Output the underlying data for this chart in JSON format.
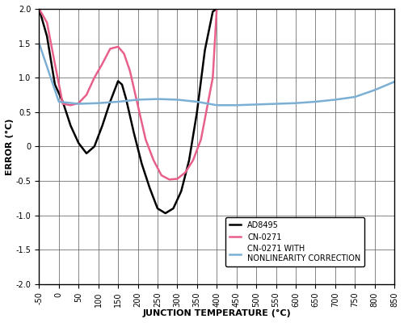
{
  "title": "",
  "xlabel": "JUNCTION TEMPERATURE (°C)",
  "ylabel": "ERROR (°C)",
  "xlim": [
    -50,
    850
  ],
  "ylim": [
    -2.0,
    2.0
  ],
  "xticks": [
    -50,
    0,
    50,
    100,
    150,
    200,
    250,
    300,
    350,
    400,
    450,
    500,
    550,
    600,
    650,
    700,
    750,
    800,
    850
  ],
  "yticks": [
    -2.0,
    -1.5,
    -1.0,
    -0.5,
    0,
    0.5,
    1.0,
    1.5,
    2.0
  ],
  "grid": true,
  "background_color": "#ffffff",
  "legend": [
    {
      "label": "AD8495",
      "color": "#000000"
    },
    {
      "label": "CN-0271",
      "color": "#e8608a"
    },
    {
      "label": "CN-0271 WITH\nNONLINEARITY CORRECTION",
      "color": "#7bafd4"
    }
  ],
  "ad8495_x": [
    -50,
    -30,
    -10,
    10,
    30,
    50,
    70,
    90,
    110,
    130,
    150,
    160,
    170,
    190,
    210,
    230,
    250,
    270,
    290,
    310,
    330,
    350,
    370,
    390,
    400
  ],
  "ad8495_y": [
    2.0,
    1.6,
    0.9,
    0.65,
    0.3,
    0.05,
    -0.1,
    0.0,
    0.3,
    0.65,
    0.95,
    0.9,
    0.7,
    0.2,
    -0.25,
    -0.6,
    -0.9,
    -0.97,
    -0.9,
    -0.65,
    -0.2,
    0.5,
    1.4,
    1.96,
    2.0
  ],
  "cn0271_x": [
    -50,
    -30,
    -10,
    10,
    30,
    50,
    70,
    90,
    110,
    130,
    150,
    165,
    180,
    200,
    220,
    240,
    260,
    280,
    300,
    320,
    340,
    360,
    390,
    400
  ],
  "cn0271_y": [
    2.0,
    1.8,
    1.2,
    0.62,
    0.6,
    0.63,
    0.75,
    1.0,
    1.2,
    1.42,
    1.45,
    1.35,
    1.1,
    0.6,
    0.1,
    -0.2,
    -0.42,
    -0.48,
    -0.47,
    -0.38,
    -0.2,
    0.1,
    1.0,
    2.0
  ],
  "corrected_x": [
    -50,
    0,
    50,
    100,
    150,
    200,
    250,
    300,
    350,
    400,
    450,
    500,
    550,
    600,
    650,
    700,
    750,
    800,
    850
  ],
  "corrected_y": [
    1.5,
    0.65,
    0.62,
    0.63,
    0.65,
    0.68,
    0.69,
    0.68,
    0.65,
    0.6,
    0.6,
    0.61,
    0.62,
    0.63,
    0.65,
    0.68,
    0.72,
    0.82,
    0.94
  ]
}
